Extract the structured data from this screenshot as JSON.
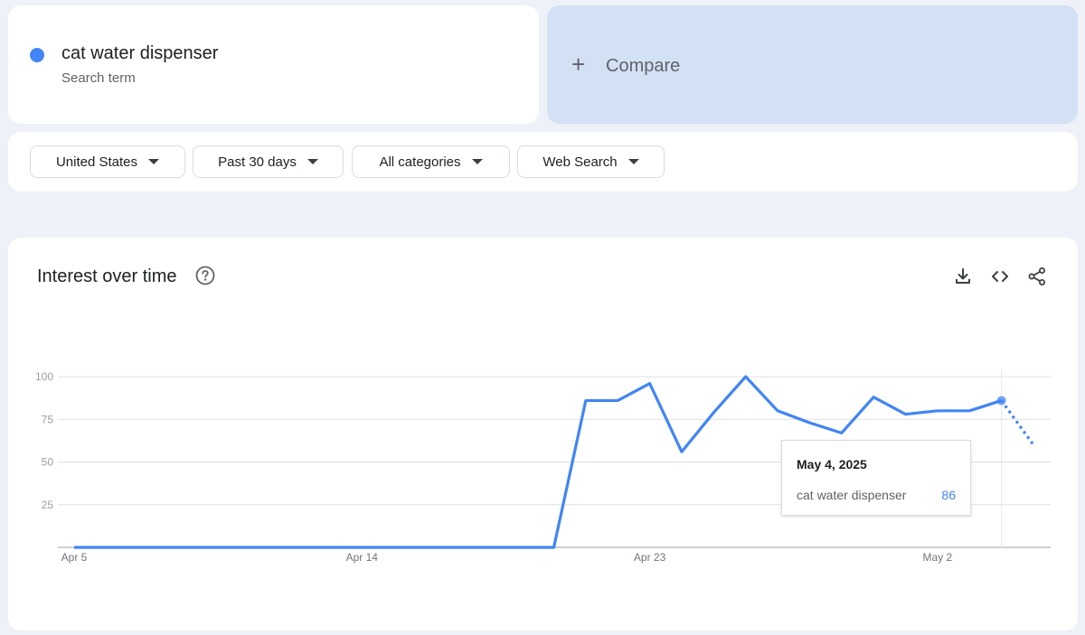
{
  "term": {
    "name": "cat water dispenser",
    "sublabel": "Search term",
    "color": "#4285f4"
  },
  "compare": {
    "label": "Compare",
    "icon": "plus-icon"
  },
  "filters": [
    {
      "label": "United States"
    },
    {
      "label": "Past 30 days"
    },
    {
      "label": "All categories"
    },
    {
      "label": "Web Search"
    }
  ],
  "interest": {
    "title": "Interest over time",
    "icons": [
      "help-icon",
      "download-icon",
      "embed-code-icon",
      "share-icon"
    ]
  },
  "chart_data": {
    "type": "line",
    "title": "Interest over time",
    "xlabel": "",
    "ylabel": "",
    "ylim": [
      0,
      100
    ],
    "yticks": [
      25,
      50,
      75,
      100
    ],
    "grid": true,
    "xtick_labels": [
      "Apr 5",
      "Apr 14",
      "Apr 23",
      "May 2"
    ],
    "x": [
      "Apr 5",
      "Apr 6",
      "Apr 7",
      "Apr 8",
      "Apr 9",
      "Apr 10",
      "Apr 11",
      "Apr 12",
      "Apr 13",
      "Apr 14",
      "Apr 15",
      "Apr 16",
      "Apr 17",
      "Apr 18",
      "Apr 19",
      "Apr 20",
      "Apr 21",
      "Apr 22",
      "Apr 23",
      "Apr 24",
      "Apr 25",
      "Apr 26",
      "Apr 27",
      "Apr 28",
      "Apr 29",
      "Apr 30",
      "May 1",
      "May 2",
      "May 3",
      "May 4",
      "May 5"
    ],
    "series": [
      {
        "values": [
          0,
          0,
          0,
          0,
          0,
          0,
          0,
          0,
          0,
          0,
          0,
          0,
          0,
          0,
          0,
          0,
          86,
          86,
          96,
          56,
          79,
          100,
          80,
          73,
          67,
          88,
          78,
          80,
          80,
          86,
          60
        ],
        "partial_last": true
      }
    ]
  },
  "tooltip": {
    "date": "May 4, 2025",
    "term": "cat water dispenser",
    "value": "86"
  }
}
